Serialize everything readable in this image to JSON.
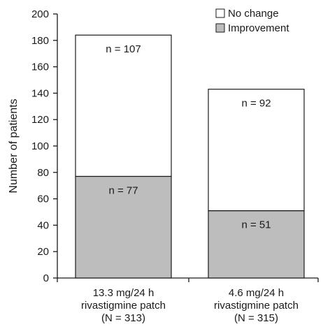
{
  "chart_data": {
    "type": "bar",
    "stacked": true,
    "ylabel": "Number of patients",
    "ylim": [
      0,
      200
    ],
    "yticks": [
      "0",
      "20",
      "40",
      "60",
      "80",
      "100",
      "120",
      "140",
      "160",
      "180",
      "200"
    ],
    "categories": [
      [
        "13.3 mg/24 h",
        "rivastigmine patch",
        "(N = 313)"
      ],
      [
        "4.6 mg/24 h",
        "rivastigmine patch",
        "(N = 315)"
      ]
    ],
    "series": [
      {
        "name": "Improvement",
        "values": [
          77,
          51
        ],
        "labels": [
          "n = 77",
          "n = 51"
        ],
        "color": "#bdbdbd"
      },
      {
        "name": "No change",
        "values": [
          107,
          92
        ],
        "labels": [
          "n = 107",
          "n = 92"
        ],
        "color": "#ffffff"
      }
    ],
    "legend": {
      "position": "top-right",
      "order": [
        "No change",
        "Improvement"
      ]
    },
    "grid": false
  }
}
